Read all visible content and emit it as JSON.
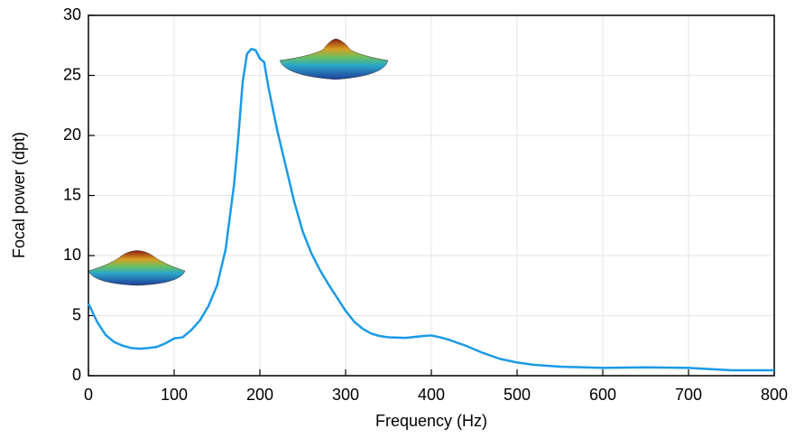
{
  "chart_data": {
    "type": "line",
    "x_label": "Frequency (Hz)",
    "y_label": "Focal power (dpt)",
    "x": [
      0,
      10,
      20,
      30,
      40,
      50,
      60,
      70,
      80,
      90,
      100,
      110,
      120,
      130,
      140,
      150,
      160,
      170,
      175,
      180,
      185,
      190,
      195,
      200,
      205,
      210,
      220,
      230,
      240,
      250,
      260,
      270,
      280,
      290,
      300,
      310,
      320,
      330,
      340,
      350,
      370,
      390,
      400,
      410,
      420,
      440,
      460,
      480,
      500,
      520,
      550,
      600,
      650,
      700,
      750,
      800
    ],
    "series": [
      {
        "name": "Focal power",
        "color": "#1b9ae6",
        "values": [
          6.0,
          4.5,
          3.4,
          2.8,
          2.5,
          2.3,
          2.25,
          2.3,
          2.4,
          2.7,
          3.1,
          3.2,
          3.8,
          4.6,
          5.8,
          7.5,
          10.5,
          16,
          20,
          24.5,
          26.8,
          27.2,
          27.1,
          26.4,
          26.1,
          24,
          20.5,
          17.5,
          14.5,
          12,
          10.2,
          8.8,
          7.6,
          6.5,
          5.4,
          4.5,
          3.9,
          3.5,
          3.3,
          3.2,
          3.15,
          3.3,
          3.35,
          3.2,
          3.0,
          2.5,
          1.9,
          1.4,
          1.1,
          0.9,
          0.75,
          0.65,
          0.7,
          0.65,
          0.45,
          0.45
        ]
      }
    ],
    "xlim": [
      0,
      800
    ],
    "xticks": [
      0,
      100,
      200,
      300,
      400,
      500,
      600,
      700,
      800
    ],
    "ylim": [
      0,
      30
    ],
    "yticks": [
      0,
      5,
      10,
      15,
      20,
      25,
      30
    ],
    "grid": true
  }
}
